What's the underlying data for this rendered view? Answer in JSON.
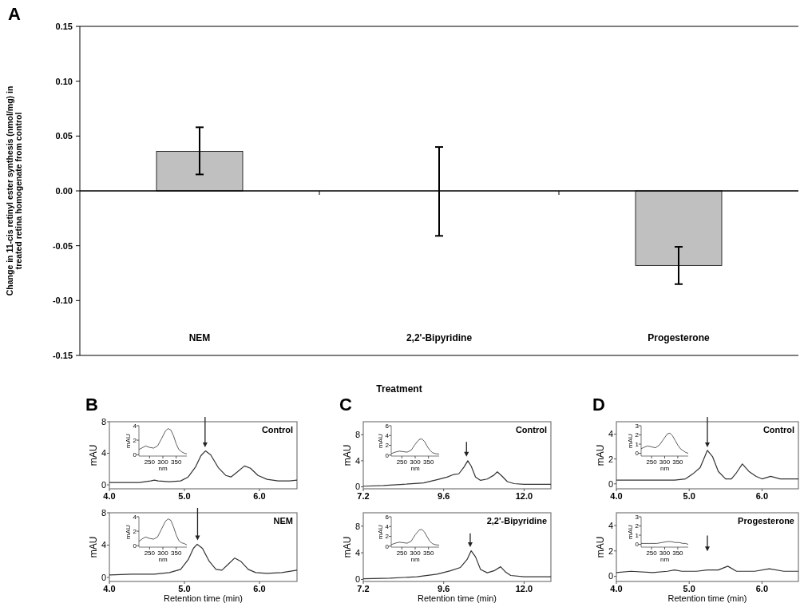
{
  "chart_data": [
    {
      "type": "bar",
      "title": "A",
      "xlabel": "Treatment",
      "ylabel": "Change in 11-cis retinyl ester synthesis (nmol/mg) in treated retina homogenate from control",
      "categories": [
        "NEM",
        "2,2'-Bipyridine",
        "Progesterone"
      ],
      "values": [
        0.036,
        0,
        -0.068
      ],
      "errors": [
        [
          0.015,
          0.058
        ],
        [
          -0.041,
          0.04
        ],
        [
          -0.085,
          -0.051
        ]
      ],
      "color": "#c0c0c0",
      "ylim": [
        -0.15,
        0.15
      ],
      "yticks": [
        {
          "value": -0.15,
          "label": "-0.15"
        },
        {
          "value": -0.1,
          "label": "-0.10"
        },
        {
          "value": -0.05,
          "label": "-0.05"
        },
        {
          "value": 0,
          "label": "0.00"
        },
        {
          "value": 0.05,
          "label": "0.05"
        },
        {
          "value": 0.1,
          "label": "0.10"
        },
        {
          "value": 0.15,
          "label": "0.15"
        }
      ]
    },
    {
      "type": "line",
      "title": "B",
      "ylabel": "mAU",
      "annotations": [
        "Control"
      ],
      "x": [
        4.0,
        4.2,
        4.4,
        4.55,
        4.6,
        4.65,
        4.8,
        4.95,
        5.05,
        5.15,
        5.22,
        5.28,
        5.35,
        5.45,
        5.55,
        5.62,
        5.7,
        5.8,
        5.88,
        5.98,
        6.1,
        6.25,
        6.4,
        6.5
      ],
      "series": [
        {
          "color": "#333333",
          "values": [
            0.3,
            0.3,
            0.3,
            0.5,
            0.6,
            0.5,
            0.4,
            0.5,
            1.0,
            2.3,
            3.7,
            4.3,
            3.8,
            2.2,
            1.2,
            1.0,
            1.6,
            2.4,
            2.1,
            1.2,
            0.7,
            0.5,
            0.5,
            0.6
          ]
        }
      ],
      "xlim": [
        4,
        6.5
      ],
      "xticks": [
        {
          "value": 4,
          "label": "4.0"
        },
        {
          "value": 5,
          "label": "5.0"
        },
        {
          "value": 6,
          "label": "6.0"
        }
      ],
      "ylim": [
        -0.5,
        8
      ],
      "yticks": [
        0,
        4,
        8
      ]
    },
    {
      "type": "line",
      "xlabel": "nm",
      "ylabel": "mAU",
      "x": [
        210,
        225,
        235,
        250,
        265,
        280,
        295,
        310,
        320,
        330,
        340,
        350,
        360,
        370,
        380,
        390
      ],
      "series": [
        {
          "color": "#333333",
          "values": [
            0.7,
            1.0,
            1.2,
            1.0,
            0.9,
            1.2,
            2.2,
            3.3,
            3.6,
            3.4,
            2.6,
            1.5,
            0.7,
            0.4,
            0.2,
            0.1
          ]
        }
      ],
      "xlim": [
        210,
        390
      ],
      "xticks": [
        250,
        300,
        350
      ],
      "ylim": [
        -0.2,
        4
      ],
      "yticks": [
        0,
        2,
        4
      ]
    },
    {
      "type": "line",
      "xlabel": "Retention time (min)",
      "ylabel": "mAU",
      "annotations": [
        "NEM"
      ],
      "x": [
        4.0,
        4.3,
        4.6,
        4.8,
        4.95,
        5.05,
        5.12,
        5.17,
        5.24,
        5.33,
        5.42,
        5.5,
        5.58,
        5.67,
        5.75,
        5.85,
        5.95,
        6.1,
        6.3,
        6.5
      ],
      "series": [
        {
          "color": "#333333",
          "values": [
            0.3,
            0.4,
            0.4,
            0.6,
            1.0,
            2.2,
            3.6,
            4.1,
            3.6,
            2.0,
            1.0,
            0.9,
            1.6,
            2.4,
            2.0,
            1.0,
            0.6,
            0.5,
            0.6,
            0.9
          ]
        }
      ],
      "xlim": [
        4,
        6.5
      ],
      "xticks": [
        {
          "value": 4,
          "label": "4.0"
        },
        {
          "value": 5,
          "label": "5.0"
        },
        {
          "value": 6,
          "label": "6.0"
        }
      ],
      "ylim": [
        -0.5,
        8
      ],
      "yticks": [
        0,
        4,
        8
      ]
    },
    {
      "type": "line",
      "xlabel": "nm",
      "ylabel": "mAU",
      "x": [
        210,
        225,
        235,
        250,
        265,
        280,
        295,
        310,
        320,
        330,
        340,
        350,
        360,
        370,
        380,
        390
      ],
      "series": [
        {
          "color": "#333333",
          "values": [
            0.6,
            1.0,
            1.2,
            1.0,
            0.9,
            1.2,
            2.3,
            3.4,
            3.7,
            3.5,
            2.6,
            1.5,
            0.7,
            0.4,
            0.3,
            0.1
          ]
        }
      ],
      "xlim": [
        210,
        390
      ],
      "xticks": [
        250,
        300,
        350
      ],
      "ylim": [
        -0.2,
        4
      ],
      "yticks": [
        0,
        2,
        4
      ]
    },
    {
      "type": "line",
      "title": "C",
      "ylabel": "mAU",
      "annotations": [
        "Control"
      ],
      "x": [
        7.2,
        7.8,
        8.4,
        9.0,
        9.4,
        9.7,
        9.9,
        10.05,
        10.2,
        10.32,
        10.42,
        10.55,
        10.7,
        10.9,
        11.1,
        11.2,
        11.35,
        11.5,
        11.7,
        12.0,
        12.4,
        12.8
      ],
      "series": [
        {
          "color": "#333333",
          "values": [
            0.1,
            0.2,
            0.4,
            0.6,
            1.1,
            1.5,
            1.9,
            2.0,
            3.0,
            4.0,
            3.2,
            1.5,
            1.0,
            1.2,
            1.8,
            2.3,
            1.6,
            0.8,
            0.5,
            0.4,
            0.4,
            0.4
          ]
        }
      ],
      "xlim": [
        7.2,
        12.8
      ],
      "xticks": [
        7.2,
        9.6,
        {
          "value": 12,
          "label": "12.0"
        }
      ],
      "ylim": [
        -0.3,
        10
      ],
      "yticks": [
        0,
        4,
        8
      ]
    },
    {
      "type": "line",
      "xlabel": "nm",
      "ylabel": "mAU",
      "x": [
        210,
        225,
        240,
        255,
        270,
        285,
        300,
        315,
        325,
        335,
        345,
        355,
        365,
        375,
        390
      ],
      "series": [
        {
          "color": "#333333",
          "values": [
            0.3,
            0.6,
            0.8,
            0.7,
            0.6,
            1.0,
            2.2,
            3.2,
            3.3,
            2.8,
            1.8,
            1.0,
            0.5,
            0.3,
            0.2
          ]
        }
      ],
      "xlim": [
        210,
        390
      ],
      "xticks": [
        250,
        300,
        350
      ],
      "ylim": [
        -0.2,
        6
      ],
      "yticks": [
        0,
        2,
        4,
        6
      ]
    },
    {
      "type": "line",
      "xlabel": "Retention time (min)",
      "ylabel": "mAU",
      "annotations": [
        "2,2'-Bipyridine"
      ],
      "x": [
        7.2,
        8.0,
        8.8,
        9.4,
        9.8,
        10.1,
        10.3,
        10.42,
        10.55,
        10.7,
        10.9,
        11.1,
        11.3,
        11.45,
        11.6,
        12.0,
        12.8
      ],
      "series": [
        {
          "color": "#333333",
          "values": [
            0.1,
            0.2,
            0.4,
            0.8,
            1.3,
            1.8,
            3.0,
            4.3,
            3.4,
            1.5,
            1.0,
            1.3,
            1.9,
            1.1,
            0.6,
            0.4,
            0.4
          ]
        }
      ],
      "xlim": [
        7.2,
        12.8
      ],
      "xticks": [
        7.2,
        9.6,
        {
          "value": 12,
          "label": "12.0"
        }
      ],
      "ylim": [
        -0.3,
        10
      ],
      "yticks": [
        0,
        4,
        8
      ]
    },
    {
      "type": "line",
      "xlabel": "nm",
      "ylabel": "mAU",
      "x": [
        210,
        225,
        240,
        255,
        270,
        285,
        300,
        315,
        325,
        335,
        345,
        355,
        365,
        375,
        390
      ],
      "series": [
        {
          "color": "#333333",
          "values": [
            0.3,
            0.6,
            0.8,
            0.7,
            0.6,
            1.0,
            2.3,
            3.3,
            3.4,
            2.9,
            1.9,
            1.0,
            0.5,
            0.3,
            0.2
          ]
        }
      ],
      "xlim": [
        210,
        390
      ],
      "xticks": [
        250,
        300,
        350
      ],
      "ylim": [
        -0.2,
        6
      ],
      "yticks": [
        0,
        2,
        4,
        6
      ]
    },
    {
      "type": "line",
      "title": "D",
      "ylabel": "mAU",
      "annotations": [
        "Control"
      ],
      "x": [
        4.0,
        4.4,
        4.8,
        4.95,
        5.05,
        5.15,
        5.2,
        5.25,
        5.32,
        5.4,
        5.5,
        5.58,
        5.65,
        5.73,
        5.82,
        5.92,
        6.0,
        6.12,
        6.25,
        6.4,
        6.5
      ],
      "series": [
        {
          "color": "#333333",
          "values": [
            0.3,
            0.3,
            0.3,
            0.4,
            0.8,
            1.3,
            2.0,
            2.7,
            2.2,
            1.0,
            0.4,
            0.4,
            0.9,
            1.6,
            1.0,
            0.6,
            0.4,
            0.6,
            0.4,
            0.4,
            0.4
          ]
        }
      ],
      "xlim": [
        4,
        6.5
      ],
      "xticks": [
        {
          "value": 4,
          "label": "4.0"
        },
        {
          "value": 5,
          "label": "5.0"
        },
        {
          "value": 6,
          "label": "6.0"
        }
      ],
      "ylim": [
        -0.4,
        5
      ],
      "yticks": [
        0,
        2,
        4
      ]
    },
    {
      "type": "line",
      "xlabel": "nm",
      "ylabel": "mAU",
      "x": [
        210,
        225,
        235,
        250,
        265,
        280,
        295,
        310,
        320,
        330,
        340,
        350,
        360,
        370,
        380,
        390
      ],
      "series": [
        {
          "color": "#333333",
          "values": [
            0.5,
            0.7,
            0.8,
            0.7,
            0.6,
            0.9,
            1.5,
            2.1,
            2.2,
            1.9,
            1.4,
            0.9,
            0.5,
            0.3,
            0.1,
            0
          ]
        }
      ],
      "xlim": [
        210,
        390
      ],
      "xticks": [
        250,
        300,
        350
      ],
      "ylim": [
        -0.3,
        3
      ],
      "yticks": [
        0,
        1,
        2,
        3
      ]
    },
    {
      "type": "line",
      "xlabel": "Retention time (min)",
      "ylabel": "mAU",
      "annotations": [
        "Progesterone"
      ],
      "x": [
        4.0,
        4.2,
        4.5,
        4.7,
        4.8,
        4.9,
        5.1,
        5.25,
        5.4,
        5.53,
        5.65,
        5.9,
        6.1,
        6.3,
        6.5
      ],
      "series": [
        {
          "color": "#333333",
          "values": [
            0.3,
            0.4,
            0.3,
            0.4,
            0.5,
            0.4,
            0.4,
            0.5,
            0.5,
            0.8,
            0.4,
            0.4,
            0.6,
            0.4,
            0.4
          ]
        }
      ],
      "xlim": [
        4,
        6.5
      ],
      "xticks": [
        {
          "value": 4,
          "label": "4.0"
        },
        {
          "value": 5,
          "label": "5.0"
        },
        {
          "value": 6,
          "label": "6.0"
        }
      ],
      "ylim": [
        -0.4,
        5
      ],
      "yticks": [
        0,
        2,
        4
      ]
    },
    {
      "type": "line",
      "xlabel": "nm",
      "ylabel": "mAU",
      "x": [
        210,
        240,
        270,
        290,
        310,
        325,
        340,
        355,
        370,
        380,
        390
      ],
      "series": [
        {
          "color": "#333333",
          "values": [
            0.1,
            0.1,
            0.1,
            0.2,
            0.3,
            0.3,
            0.2,
            0.2,
            0.1,
            0.1,
            0
          ]
        }
      ],
      "xlim": [
        210,
        390
      ],
      "xticks": [
        250,
        300,
        350
      ],
      "ylim": [
        -0.3,
        3
      ],
      "yticks": [
        0,
        1,
        2,
        3
      ]
    }
  ]
}
